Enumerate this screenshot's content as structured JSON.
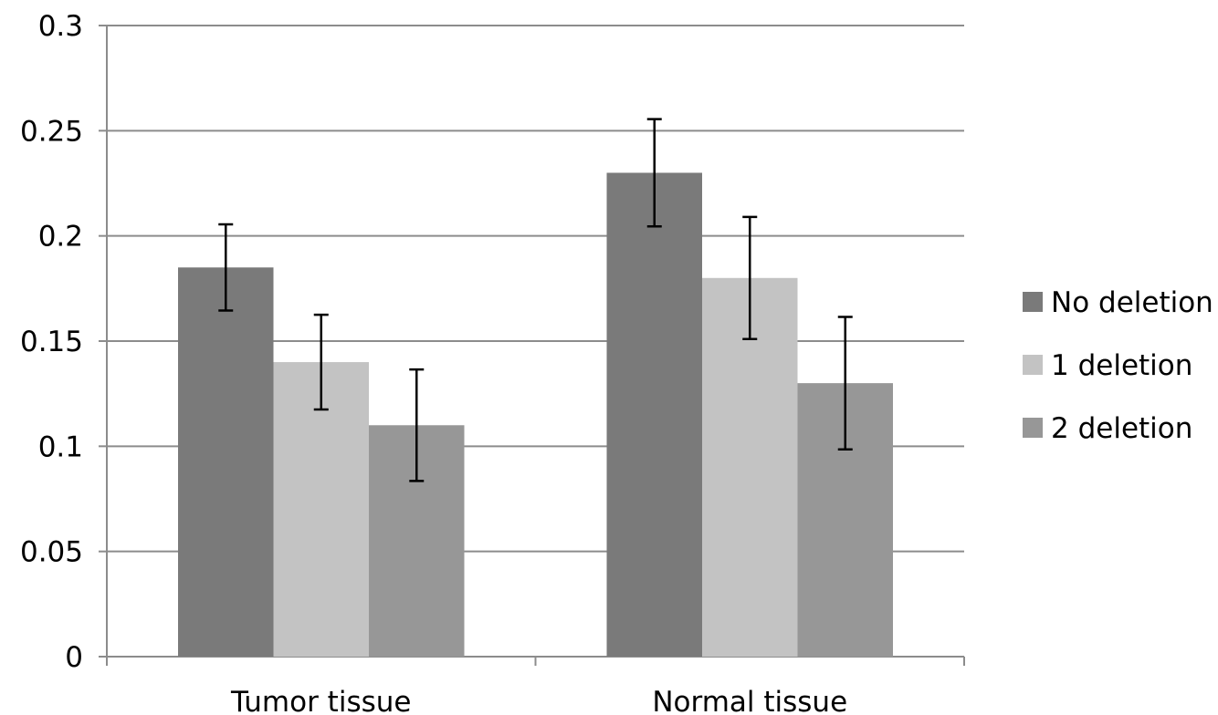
{
  "chart_data": {
    "type": "bar",
    "categories": [
      "Tumor tissue",
      "Normal tissue"
    ],
    "series": [
      {
        "name": "No deletion",
        "color": "#7a7a7a",
        "values": [
          0.185,
          0.23
        ],
        "error": [
          0.0205,
          0.0255
        ]
      },
      {
        "name": "1 deletion",
        "color": "#c3c3c3",
        "values": [
          0.14,
          0.18
        ],
        "error": [
          0.0225,
          0.029
        ]
      },
      {
        "name": "2 deletion",
        "color": "#979797",
        "values": [
          0.11,
          0.13
        ],
        "error": [
          0.0265,
          0.0315
        ]
      }
    ],
    "ylim": [
      0,
      0.3
    ],
    "yticks": [
      0,
      0.05,
      0.1,
      0.15,
      0.2,
      0.25,
      0.3
    ],
    "ytick_labels": [
      "0",
      "0.05",
      "0.1",
      "0.15",
      "0.2",
      "0.25",
      "0.3"
    ],
    "grid": true,
    "legend_position": "right",
    "title": "",
    "xlabel": "",
    "ylabel": ""
  }
}
